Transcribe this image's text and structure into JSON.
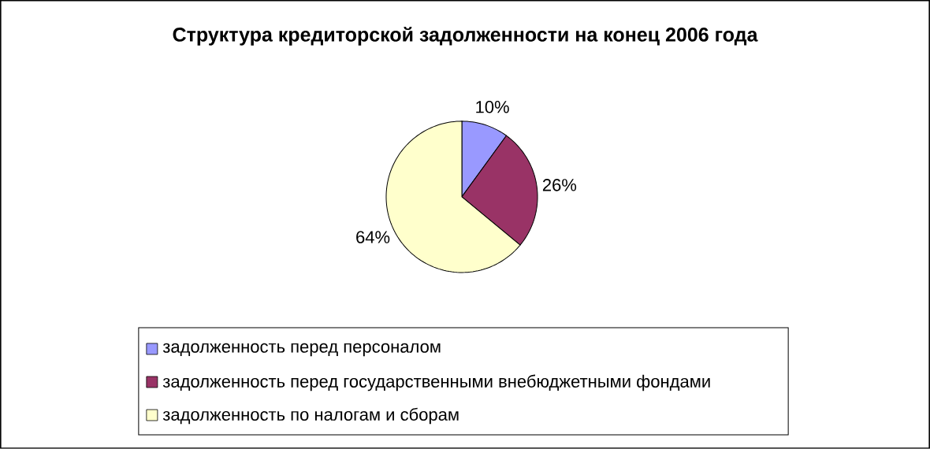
{
  "chart_data": {
    "type": "pie",
    "title": "Структура кредиторской задолженности на конец 2006 года",
    "categories": [
      "задолженность перед персоналом",
      "задолженность перед государственными внебюджетными фондами",
      "задолженность по налогам и сборам"
    ],
    "values": [
      10,
      26,
      64
    ],
    "colors": [
      "#9999ff",
      "#993366",
      "#ffffcc"
    ],
    "value_labels": [
      "10%",
      "26%",
      "64%"
    ],
    "legend": "bottom"
  }
}
